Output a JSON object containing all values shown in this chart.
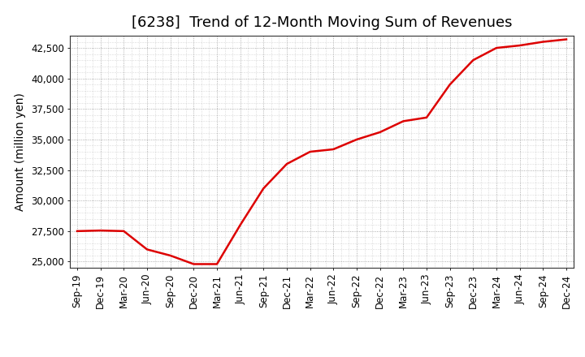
{
  "title": "[6238]  Trend of 12-Month Moving Sum of Revenues",
  "ylabel": "Amount (million yen)",
  "line_color": "#dd0000",
  "line_width": 1.8,
  "background_color": "#ffffff",
  "plot_bg_color": "#ffffff",
  "grid_color": "#999999",
  "x_labels": [
    "Sep-19",
    "Dec-19",
    "Mar-20",
    "Jun-20",
    "Sep-20",
    "Dec-20",
    "Mar-21",
    "Jun-21",
    "Sep-21",
    "Dec-21",
    "Mar-22",
    "Jun-22",
    "Sep-22",
    "Dec-22",
    "Mar-23",
    "Jun-23",
    "Sep-23",
    "Dec-23",
    "Mar-24",
    "Jun-24",
    "Sep-24",
    "Dec-24"
  ],
  "values": [
    27500,
    27550,
    27500,
    26000,
    25500,
    24800,
    24800,
    28000,
    31000,
    33000,
    34000,
    34200,
    35000,
    35600,
    36500,
    36800,
    39500,
    41500,
    42500,
    42700,
    43000,
    43200
  ],
  "ylim": [
    24500,
    43500
  ],
  "yticks": [
    25000,
    27500,
    30000,
    32500,
    35000,
    37500,
    40000,
    42500
  ],
  "title_fontsize": 13,
  "axis_fontsize": 10,
  "tick_fontsize": 8.5
}
